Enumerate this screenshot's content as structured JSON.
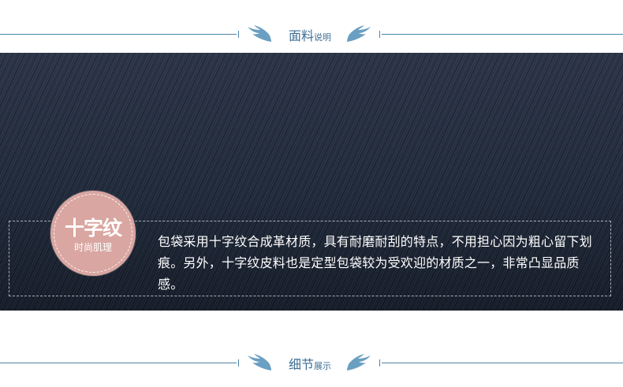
{
  "fabric_section": {
    "title_main": "面料",
    "title_sub": "说明"
  },
  "badge": {
    "title": "十字纹",
    "subtitle": "时尚肌理"
  },
  "description": "包袋采用十字纹合成革材质，具有耐磨耐刮的特点，不用担心因为粗心留下划痕。另外，十字纹皮料也是定型包袋较为受欢迎的材质之一，非常凸显品质感。",
  "detail_section": {
    "title_main": "细节",
    "title_sub": "展示"
  },
  "colors": {
    "accent_blue": "#3d6f95",
    "wing_blue": "#6a9fc2",
    "badge_pink": "#d9a6a1",
    "denim_navy": "#1b2333"
  }
}
